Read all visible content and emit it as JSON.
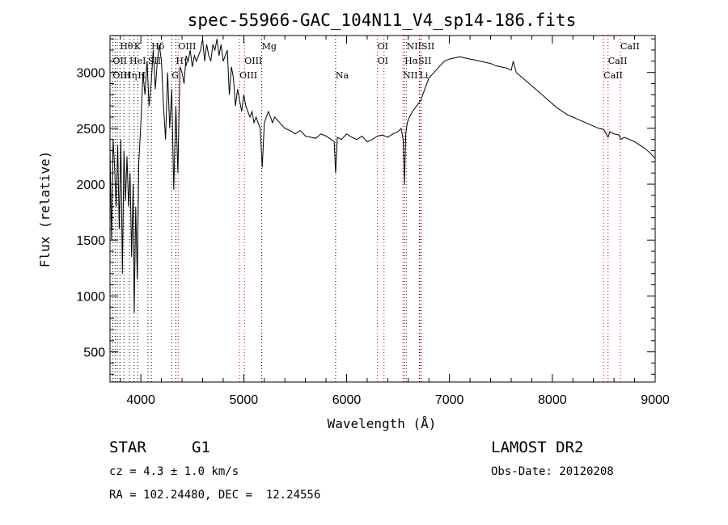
{
  "chart_data": {
    "type": "line",
    "title": "spec-55966-GAC_104N11_V4_sp14-186.fits",
    "xlabel": "Wavelength (Å)",
    "ylabel": "Flux (relative)",
    "xlim": [
      3700,
      9000
    ],
    "ylim": [
      230,
      3330
    ],
    "x_ticks": [
      4000,
      5000,
      6000,
      7000,
      8000,
      9000
    ],
    "y_ticks": [
      500,
      1000,
      1500,
      2000,
      2500,
      3000
    ],
    "grid": false,
    "series": [
      {
        "color": "#000000",
        "x": [
          3700,
          3715,
          3730,
          3745,
          3760,
          3775,
          3790,
          3805,
          3820,
          3835,
          3850,
          3865,
          3880,
          3895,
          3910,
          3925,
          3935,
          3950,
          3965,
          3980,
          4000,
          4020,
          4040,
          4060,
          4080,
          4100,
          4120,
          4140,
          4160,
          4180,
          4200,
          4220,
          4240,
          4260,
          4280,
          4300,
          4320,
          4340,
          4360,
          4380,
          4400,
          4420,
          4440,
          4460,
          4480,
          4500,
          4520,
          4540,
          4560,
          4580,
          4600,
          4620,
          4640,
          4660,
          4680,
          4700,
          4720,
          4740,
          4760,
          4780,
          4800,
          4820,
          4840,
          4860,
          4880,
          4900,
          4920,
          4940,
          4960,
          4980,
          5000,
          5020,
          5040,
          5060,
          5080,
          5100,
          5120,
          5140,
          5160,
          5180,
          5200,
          5220,
          5240,
          5260,
          5280,
          5300,
          5350,
          5400,
          5450,
          5500,
          5550,
          5600,
          5650,
          5700,
          5750,
          5800,
          5850,
          5880,
          5893,
          5910,
          5950,
          6000,
          6050,
          6100,
          6150,
          6200,
          6250,
          6300,
          6350,
          6400,
          6450,
          6500,
          6530,
          6550,
          6563,
          6575,
          6590,
          6610,
          6640,
          6680,
          6720,
          6760,
          6800,
          6850,
          6900,
          6950,
          7000,
          7050,
          7100,
          7150,
          7200,
          7250,
          7300,
          7350,
          7400,
          7450,
          7500,
          7550,
          7600,
          7620,
          7650,
          7700,
          7750,
          7800,
          7850,
          7900,
          7950,
          8000,
          8050,
          8100,
          8150,
          8200,
          8250,
          8300,
          8350,
          8400,
          8450,
          8500,
          8542,
          8560,
          8600,
          8650,
          8662,
          8700,
          8750,
          8800,
          8850,
          8900,
          8950,
          9000
        ],
        "y": [
          2300,
          1500,
          2400,
          2150,
          1800,
          2350,
          1600,
          2400,
          1200,
          2300,
          1850,
          2250,
          1800,
          2100,
          1350,
          2000,
          850,
          1800,
          1150,
          2200,
          2550,
          3000,
          2800,
          3100,
          2700,
          2900,
          3200,
          2850,
          3100,
          3250,
          3100,
          2700,
          2400,
          3000,
          2500,
          2850,
          1950,
          2700,
          2100,
          3050,
          3000,
          2900,
          3150,
          3100,
          3200,
          3050,
          3150,
          3100,
          3150,
          3200,
          3300,
          3100,
          3250,
          3150,
          3100,
          3250,
          3200,
          3300,
          3150,
          3250,
          3100,
          3150,
          3200,
          2800,
          3050,
          2950,
          2700,
          2850,
          2750,
          2650,
          2800,
          2700,
          2650,
          2600,
          2650,
          2550,
          2600,
          2550,
          2500,
          2150,
          2550,
          2600,
          2650,
          2600,
          2550,
          2600,
          2550,
          2500,
          2480,
          2450,
          2480,
          2430,
          2420,
          2410,
          2450,
          2430,
          2400,
          2380,
          2100,
          2420,
          2400,
          2450,
          2420,
          2400,
          2430,
          2380,
          2400,
          2430,
          2440,
          2420,
          2450,
          2470,
          2500,
          2400,
          2000,
          2450,
          2550,
          2600,
          2650,
          2700,
          2750,
          2850,
          2950,
          3000,
          3050,
          3100,
          3120,
          3130,
          3140,
          3130,
          3120,
          3110,
          3100,
          3090,
          3080,
          3060,
          3050,
          3040,
          3020,
          3100,
          3000,
          2960,
          2920,
          2880,
          2840,
          2800,
          2760,
          2720,
          2680,
          2650,
          2620,
          2600,
          2580,
          2560,
          2540,
          2520,
          2500,
          2490,
          2420,
          2470,
          2450,
          2440,
          2400,
          2420,
          2400,
          2380,
          2350,
          2320,
          2280,
          2230
        ]
      }
    ],
    "lines_top_label_wavelength": [
      3797,
      3835,
      3889,
      3934,
      3970,
      4102,
      4227,
      4300,
      4340,
      4861,
      4959,
      5007,
      5175,
      5893,
      6300,
      6364,
      6548,
      6563,
      6583,
      6716,
      6731,
      6708,
      8498,
      8542,
      8662
    ],
    "line_labels": [
      {
        "text": "Hθ",
        "wl": 3797,
        "row": 0
      },
      {
        "text": "K",
        "wl": 3934,
        "row": 0
      },
      {
        "text": "Hδ",
        "wl": 4102,
        "row": 0
      },
      {
        "text": "OIII",
        "wl": 4363,
        "row": 0
      },
      {
        "text": "Mg",
        "wl": 5175,
        "row": 0
      },
      {
        "text": "OI",
        "wl": 6300,
        "row": 0
      },
      {
        "text": "NIISII",
        "wl": 6583,
        "row": 0
      },
      {
        "text": "CaII",
        "wl": 8662,
        "row": 0
      },
      {
        "text": "OII",
        "wl": 3727,
        "row": 1
      },
      {
        "text": "HeI",
        "wl": 3889,
        "row": 1
      },
      {
        "text": "SII",
        "wl": 4069,
        "row": 1
      },
      {
        "text": "Hγ",
        "wl": 4340,
        "row": 1
      },
      {
        "text": "OIII",
        "wl": 5007,
        "row": 1
      },
      {
        "text": "OI",
        "wl": 6300,
        "row": 1
      },
      {
        "text": "HαSII",
        "wl": 6563,
        "row": 1
      },
      {
        "text": "CaII",
        "wl": 8542,
        "row": 1
      },
      {
        "text": "OIII",
        "wl": 3727,
        "row": 2
      },
      {
        "text": "Hη",
        "wl": 3835,
        "row": 2
      },
      {
        "text": "H",
        "wl": 3970,
        "row": 2
      },
      {
        "text": "G",
        "wl": 4300,
        "row": 2
      },
      {
        "text": "OIII",
        "wl": 4959,
        "row": 2
      },
      {
        "text": "Na",
        "wl": 5893,
        "row": 2
      },
      {
        "text": "NII",
        "wl": 6548,
        "row": 2
      },
      {
        "text": "Li",
        "wl": 6708,
        "row": 2
      },
      {
        "text": "CaII",
        "wl": 8498,
        "row": 2
      }
    ],
    "marker_lines": [
      {
        "wl": 3727,
        "color": "#000000"
      },
      {
        "wl": 3750,
        "color": "#000000"
      },
      {
        "wl": 3771,
        "color": "#000000"
      },
      {
        "wl": 3797,
        "color": "#000000"
      },
      {
        "wl": 3835,
        "color": "#000000"
      },
      {
        "wl": 3889,
        "color": "#000000"
      },
      {
        "wl": 3934,
        "color": "#000000"
      },
      {
        "wl": 3970,
        "color": "#000000"
      },
      {
        "wl": 4069,
        "color": "#000000"
      },
      {
        "wl": 4102,
        "color": "#000000"
      },
      {
        "wl": 4300,
        "color": "#000000"
      },
      {
        "wl": 4340,
        "color": "#000000"
      },
      {
        "wl": 4363,
        "color": "#cc0000"
      },
      {
        "wl": 4959,
        "color": "#cc0000"
      },
      {
        "wl": 5007,
        "color": "#cc0000"
      },
      {
        "wl": 5175,
        "color": "#000000"
      },
      {
        "wl": 5893,
        "color": "#000000"
      },
      {
        "wl": 6300,
        "color": "#cc0000"
      },
      {
        "wl": 6364,
        "color": "#cc0000"
      },
      {
        "wl": 6548,
        "color": "#cc0000"
      },
      {
        "wl": 6563,
        "color": "#000000"
      },
      {
        "wl": 6583,
        "color": "#cc0000"
      },
      {
        "wl": 6708,
        "color": "#000000"
      },
      {
        "wl": 6716,
        "color": "#cc0000"
      },
      {
        "wl": 6731,
        "color": "#cc0000"
      },
      {
        "wl": 8498,
        "color": "#cc0000"
      },
      {
        "wl": 8542,
        "color": "#cc0000"
      },
      {
        "wl": 8662,
        "color": "#cc0000"
      }
    ]
  },
  "footer": {
    "class_label": "STAR",
    "subclass_label": "G1",
    "cz_text": "cz = 4.3 ± 1.0 km/s",
    "coords_text": "RA = 102.24480, DEC =  12.24556",
    "survey_text": "LAMOST DR2",
    "obs_date_text": "Obs-Date: 20120208"
  }
}
